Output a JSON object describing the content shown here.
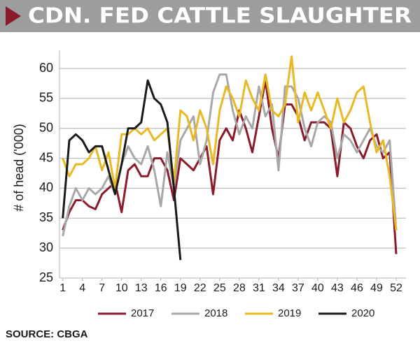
{
  "chart_data": {
    "type": "line",
    "title": "CDN. FED CATTLE SLAUGHTER",
    "y_label": "# of head ('000)",
    "source": "SOURCE: CBGA",
    "x": [
      1,
      2,
      3,
      4,
      5,
      6,
      7,
      8,
      9,
      10,
      11,
      12,
      13,
      14,
      15,
      16,
      17,
      18,
      19,
      20,
      21,
      22,
      23,
      24,
      25,
      26,
      27,
      28,
      29,
      30,
      31,
      32,
      33,
      34,
      35,
      36,
      37,
      38,
      39,
      40,
      41,
      42,
      43,
      44,
      45,
      46,
      47,
      48,
      49,
      50,
      51,
      52
    ],
    "xlim": [
      0.5,
      53.5
    ],
    "xticks": [
      1,
      4,
      7,
      10,
      13,
      16,
      19,
      22,
      25,
      28,
      31,
      34,
      37,
      40,
      43,
      46,
      49,
      52
    ],
    "ylim": [
      25,
      63
    ],
    "yticks": [
      25,
      30,
      35,
      40,
      45,
      50,
      55,
      60
    ],
    "grid": true,
    "series": [
      {
        "name": "2017",
        "color": "#8b1a2b",
        "values": [
          33,
          36,
          38,
          38,
          37,
          36.5,
          39,
          40,
          41,
          36,
          43,
          44,
          42,
          42,
          45,
          45,
          43,
          38,
          45,
          44,
          43,
          45,
          47,
          39,
          48,
          50,
          48,
          53,
          50,
          46,
          52,
          58,
          50,
          45,
          54,
          54,
          52,
          48,
          51,
          51,
          51,
          50,
          42,
          51,
          50,
          47,
          45,
          48,
          49,
          45,
          46,
          29
        ]
      },
      {
        "name": "2018",
        "color": "#a8a8a8",
        "values": [
          32,
          37,
          40,
          38,
          40,
          39,
          40,
          42,
          39,
          44,
          47,
          45,
          44,
          47,
          43,
          37,
          46,
          40,
          48,
          50,
          52,
          44,
          48,
          56,
          59,
          59,
          53,
          49,
          52,
          50,
          57,
          52,
          54,
          43,
          57,
          57,
          55,
          50,
          47,
          51,
          52,
          51,
          45,
          49,
          48,
          46,
          48,
          50,
          47,
          46,
          48,
          33
        ]
      },
      {
        "name": "2019",
        "color": "#e8b923",
        "values": [
          45,
          42,
          44,
          44,
          45,
          47,
          43,
          46,
          40,
          49,
          49,
          50,
          49,
          50,
          48,
          49,
          50,
          41,
          53,
          52,
          48,
          53,
          50,
          44,
          53,
          57,
          55,
          52,
          58,
          55,
          53,
          59,
          53,
          52,
          54,
          62,
          51,
          56,
          53,
          56,
          53,
          50,
          55,
          51,
          53,
          56,
          57,
          51,
          46,
          48,
          42,
          33
        ]
      },
      {
        "name": "2020",
        "color": "#1a1a1a",
        "values": [
          35,
          48,
          49,
          48,
          46,
          47,
          47,
          43,
          39,
          44,
          50,
          50,
          51,
          58,
          55,
          54,
          51,
          40,
          28,
          null,
          null,
          null,
          null,
          null,
          null,
          null,
          null,
          null,
          null,
          null,
          null,
          null,
          null,
          null,
          null,
          null,
          null,
          null,
          null,
          null,
          null,
          null,
          null,
          null,
          null,
          null,
          null,
          null,
          null,
          null,
          null,
          null
        ]
      }
    ]
  }
}
